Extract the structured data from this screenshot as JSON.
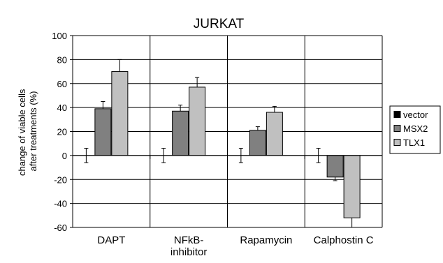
{
  "chart_data": {
    "type": "bar",
    "title": "JURKAT",
    "ylabel_lines": [
      "change of viable cells",
      "after treatments (%)"
    ],
    "xlabel": "",
    "categories": [
      [
        "DAPT"
      ],
      [
        "NFkB-",
        "inhibitor"
      ],
      [
        "Rapamycin"
      ],
      [
        "Calphostin C"
      ]
    ],
    "series": [
      {
        "name": "vector",
        "color": "#000000",
        "values": [
          0,
          0,
          0,
          0
        ],
        "errors": [
          6,
          6,
          6,
          6
        ]
      },
      {
        "name": "MSX2",
        "color": "#808080",
        "values": [
          39,
          37,
          21,
          -18
        ],
        "errors": [
          6,
          5,
          3,
          3
        ]
      },
      {
        "name": "TLX1",
        "color": "#c0c0c0",
        "values": [
          70,
          57,
          36,
          -52
        ],
        "errors": [
          10,
          8,
          5,
          8
        ]
      }
    ],
    "ylim": [
      -60,
      100
    ],
    "yticks": [
      100,
      80,
      60,
      40,
      20,
      0,
      -20,
      -40,
      -60
    ],
    "grid": true,
    "legend_position": "right"
  }
}
